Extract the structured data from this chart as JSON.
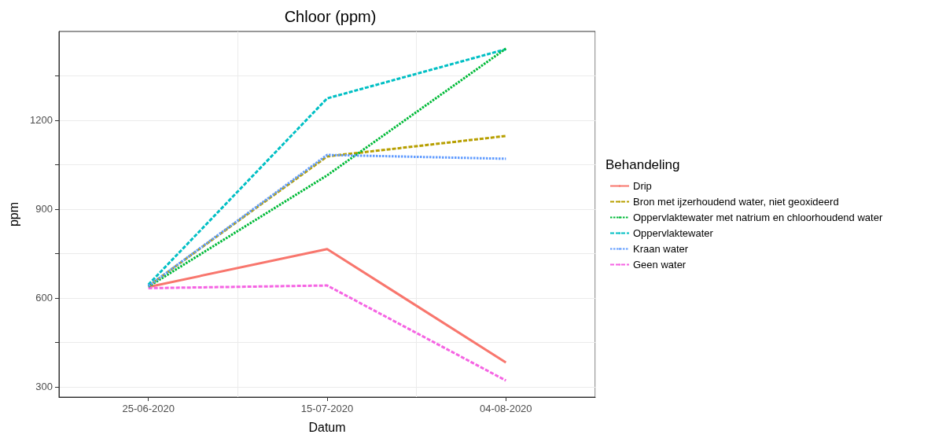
{
  "chart_data": {
    "type": "line",
    "title": "Chloor (ppm)",
    "xlabel": "Datum",
    "ylabel": "ppm",
    "legend_title": "Behandeling",
    "legend": "right",
    "grid": true,
    "marker": "none",
    "categories": [
      "25-06-2020",
      "15-07-2020",
      "04-08-2020"
    ],
    "ylim": [
      265,
      1500
    ],
    "yticks": [
      300,
      {
        "value": 450,
        "label": null
      },
      600,
      {
        "value": 750,
        "label": null
      },
      900,
      {
        "value": 1050,
        "label": null
      },
      1200,
      {
        "value": 1350,
        "label": null
      }
    ],
    "series": [
      {
        "name": "Drip",
        "color": "#f8766d",
        "line_style": "solid",
        "values": [
          637,
          765,
          382
        ]
      },
      {
        "name": "Bron met ijzerhoudend water, niet geoxideerd",
        "color": "#b79f00",
        "line_style": "dashed",
        "values": [
          640,
          1078,
          1147
        ]
      },
      {
        "name": "Oppervlaktewater met natrium en chloorhoudend water",
        "color": "#00ba38",
        "line_style": "dotted",
        "values": [
          638,
          1014,
          1442
        ]
      },
      {
        "name": "Oppervlaktewater",
        "color": "#00bfc4",
        "line_style": "dashed",
        "values": [
          645,
          1274,
          1440
        ]
      },
      {
        "name": "Kraan water",
        "color": "#619cff",
        "line_style": "dotted",
        "values": [
          640,
          1083,
          1070
        ]
      },
      {
        "name": "Geen water",
        "color": "#f564e3",
        "line_style": "dashed",
        "values": [
          633,
          642,
          321
        ]
      }
    ]
  }
}
